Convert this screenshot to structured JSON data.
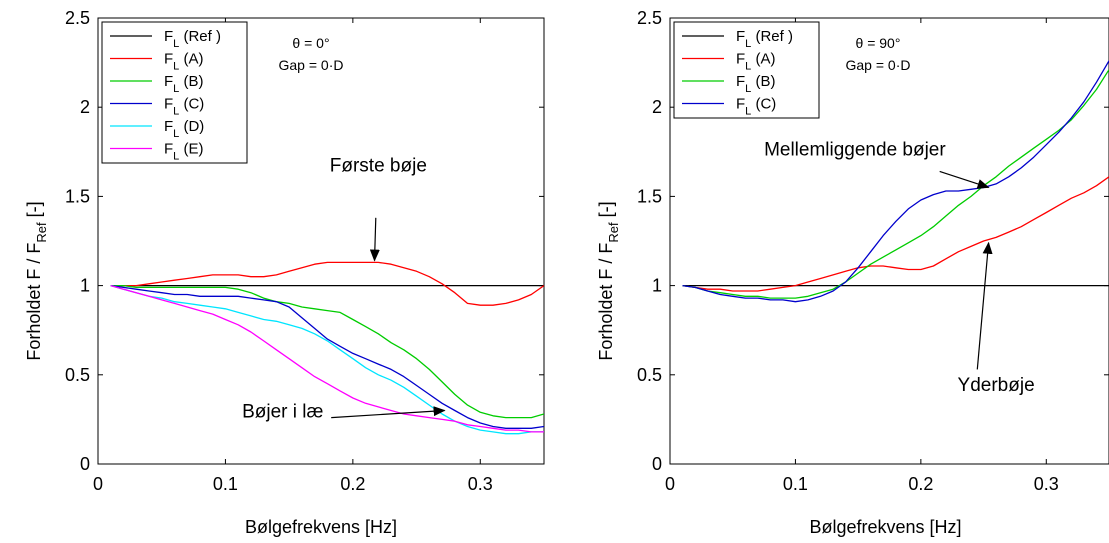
{
  "chart_data": [
    {
      "type": "line",
      "xlabel": "Bølgefrekvens [Hz]",
      "ylabel": "Forholdet F / F",
      "ylabel_sub": "Ref",
      "ylabel_unit": "[-]",
      "xlim": [
        0,
        0.35
      ],
      "ylim": [
        0,
        2.5
      ],
      "xticks": [
        0,
        0.1,
        0.2,
        0.3
      ],
      "xtick_labels": [
        "0",
        "0.1",
        "0.2",
        "0.3"
      ],
      "yticks": [
        0,
        0.5,
        1,
        1.5,
        2,
        2.5
      ],
      "ytick_labels": [
        "0",
        "0.5",
        "1",
        "1.5",
        "2",
        "2.5"
      ],
      "grid": false,
      "legend_position": "top-left",
      "info_lines": [
        "θ = 0°",
        "Gap = 0·D"
      ],
      "x": [
        0.01,
        0.02,
        0.03,
        0.04,
        0.05,
        0.06,
        0.07,
        0.08,
        0.09,
        0.1,
        0.11,
        0.12,
        0.13,
        0.14,
        0.15,
        0.16,
        0.17,
        0.18,
        0.19,
        0.2,
        0.21,
        0.22,
        0.23,
        0.24,
        0.25,
        0.26,
        0.27,
        0.28,
        0.29,
        0.3,
        0.31,
        0.32,
        0.33,
        0.34,
        0.35
      ],
      "series": [
        {
          "name": "F",
          "sub": "L",
          "suffix": " (Ref )",
          "color": "#000000",
          "values": [
            1,
            1,
            1,
            1,
            1,
            1,
            1,
            1,
            1,
            1,
            1,
            1,
            1,
            1,
            1,
            1,
            1,
            1,
            1,
            1,
            1,
            1,
            1,
            1,
            1,
            1,
            1,
            1,
            1,
            1,
            1,
            1,
            1,
            1,
            1
          ]
        },
        {
          "name": "F",
          "sub": "L",
          "suffix": " (A)",
          "color": "#ff0000",
          "values": [
            1.0,
            1.0,
            1.0,
            1.01,
            1.02,
            1.03,
            1.04,
            1.05,
            1.06,
            1.06,
            1.06,
            1.05,
            1.05,
            1.06,
            1.08,
            1.1,
            1.12,
            1.13,
            1.13,
            1.13,
            1.13,
            1.13,
            1.12,
            1.1,
            1.08,
            1.05,
            1.01,
            0.96,
            0.9,
            0.89,
            0.89,
            0.9,
            0.92,
            0.95,
            1.0
          ]
        },
        {
          "name": "F",
          "sub": "L",
          "suffix": " (B)",
          "color": "#00cc00",
          "values": [
            1.0,
            1.0,
            0.99,
            0.99,
            0.99,
            0.99,
            0.99,
            0.99,
            0.99,
            0.99,
            0.98,
            0.96,
            0.93,
            0.91,
            0.9,
            0.88,
            0.87,
            0.86,
            0.85,
            0.81,
            0.77,
            0.73,
            0.68,
            0.64,
            0.59,
            0.53,
            0.46,
            0.39,
            0.33,
            0.29,
            0.27,
            0.26,
            0.26,
            0.26,
            0.28
          ]
        },
        {
          "name": "F",
          "sub": "L",
          "suffix": " (C)",
          "color": "#0000cc",
          "values": [
            1.0,
            0.99,
            0.98,
            0.97,
            0.96,
            0.95,
            0.95,
            0.94,
            0.94,
            0.94,
            0.94,
            0.93,
            0.92,
            0.91,
            0.88,
            0.82,
            0.76,
            0.7,
            0.66,
            0.62,
            0.59,
            0.56,
            0.53,
            0.49,
            0.44,
            0.39,
            0.34,
            0.3,
            0.26,
            0.23,
            0.21,
            0.2,
            0.2,
            0.2,
            0.21
          ]
        },
        {
          "name": "F",
          "sub": "L",
          "suffix": " (D)",
          "color": "#00e5ff",
          "values": [
            1.0,
            0.98,
            0.96,
            0.94,
            0.93,
            0.91,
            0.9,
            0.89,
            0.88,
            0.87,
            0.85,
            0.83,
            0.81,
            0.8,
            0.78,
            0.76,
            0.73,
            0.69,
            0.64,
            0.59,
            0.54,
            0.5,
            0.47,
            0.43,
            0.38,
            0.33,
            0.28,
            0.24,
            0.21,
            0.19,
            0.18,
            0.17,
            0.17,
            0.18,
            0.18
          ]
        },
        {
          "name": "F",
          "sub": "L",
          "suffix": " (E)",
          "color": "#ff00ff",
          "values": [
            1.0,
            0.98,
            0.96,
            0.94,
            0.92,
            0.9,
            0.88,
            0.86,
            0.84,
            0.81,
            0.78,
            0.74,
            0.69,
            0.64,
            0.59,
            0.54,
            0.49,
            0.45,
            0.41,
            0.37,
            0.34,
            0.32,
            0.3,
            0.28,
            0.27,
            0.26,
            0.25,
            0.24,
            0.22,
            0.21,
            0.2,
            0.19,
            0.19,
            0.18,
            0.18
          ]
        }
      ],
      "annotations": [
        {
          "text": "Første bøje",
          "tx": 0.22,
          "ty": 1.64,
          "anchor": "middle",
          "ax": 0.218,
          "ay": 1.38,
          "hx": 0.217,
          "hy": 1.14
        },
        {
          "text": "Bøjer i læ",
          "tx": 0.145,
          "ty": 0.26,
          "anchor": "middle",
          "ax": 0.183,
          "ay": 0.26,
          "hx": 0.272,
          "hy": 0.3
        }
      ]
    },
    {
      "type": "line",
      "xlabel": "Bølgefrekvens [Hz]",
      "ylabel": "Forholdet F / F",
      "ylabel_sub": "Ref",
      "ylabel_unit": "[-]",
      "xlim": [
        0,
        0.35
      ],
      "ylim": [
        0,
        2.5
      ],
      "xticks": [
        0,
        0.1,
        0.2,
        0.3
      ],
      "xtick_labels": [
        "0",
        "0.1",
        "0.2",
        "0.3"
      ],
      "yticks": [
        0,
        0.5,
        1,
        1.5,
        2,
        2.5
      ],
      "ytick_labels": [
        "0",
        "0.5",
        "1",
        "1.5",
        "2",
        "2.5"
      ],
      "grid": false,
      "legend_position": "top-left",
      "info_lines": [
        "θ = 90°",
        "Gap = 0·D"
      ],
      "x": [
        0.01,
        0.02,
        0.03,
        0.04,
        0.05,
        0.06,
        0.07,
        0.08,
        0.09,
        0.1,
        0.11,
        0.12,
        0.13,
        0.14,
        0.15,
        0.16,
        0.17,
        0.18,
        0.19,
        0.2,
        0.21,
        0.22,
        0.23,
        0.24,
        0.25,
        0.26,
        0.27,
        0.28,
        0.29,
        0.3,
        0.31,
        0.32,
        0.33,
        0.34,
        0.35
      ],
      "series": [
        {
          "name": "F",
          "sub": "L",
          "suffix": " (Ref )",
          "color": "#000000",
          "values": [
            1,
            1,
            1,
            1,
            1,
            1,
            1,
            1,
            1,
            1,
            1,
            1,
            1,
            1,
            1,
            1,
            1,
            1,
            1,
            1,
            1,
            1,
            1,
            1,
            1,
            1,
            1,
            1,
            1,
            1,
            1,
            1,
            1,
            1,
            1
          ]
        },
        {
          "name": "F",
          "sub": "L",
          "suffix": " (A)",
          "color": "#ff0000",
          "values": [
            1.0,
            0.99,
            0.98,
            0.98,
            0.97,
            0.97,
            0.97,
            0.98,
            0.99,
            1.0,
            1.02,
            1.04,
            1.06,
            1.08,
            1.1,
            1.11,
            1.11,
            1.1,
            1.09,
            1.09,
            1.11,
            1.15,
            1.19,
            1.22,
            1.25,
            1.27,
            1.3,
            1.33,
            1.37,
            1.41,
            1.45,
            1.49,
            1.52,
            1.56,
            1.61
          ]
        },
        {
          "name": "F",
          "sub": "L",
          "suffix": " (B)",
          "color": "#00cc00",
          "values": [
            1.0,
            0.99,
            0.97,
            0.96,
            0.95,
            0.94,
            0.94,
            0.93,
            0.93,
            0.93,
            0.94,
            0.96,
            0.98,
            1.02,
            1.07,
            1.12,
            1.16,
            1.2,
            1.24,
            1.28,
            1.33,
            1.39,
            1.45,
            1.5,
            1.56,
            1.61,
            1.67,
            1.72,
            1.77,
            1.82,
            1.87,
            1.93,
            2.01,
            2.1,
            2.21
          ]
        },
        {
          "name": "F",
          "sub": "L",
          "suffix": " (C)",
          "color": "#0000cc",
          "values": [
            1.0,
            0.99,
            0.97,
            0.95,
            0.94,
            0.93,
            0.93,
            0.92,
            0.92,
            0.91,
            0.92,
            0.94,
            0.97,
            1.02,
            1.1,
            1.19,
            1.28,
            1.36,
            1.43,
            1.48,
            1.51,
            1.53,
            1.53,
            1.54,
            1.55,
            1.57,
            1.61,
            1.66,
            1.72,
            1.79,
            1.86,
            1.94,
            2.03,
            2.14,
            2.26
          ]
        }
      ],
      "annotations": [
        {
          "text": "Mellemliggende bøjer",
          "tx": 0.075,
          "ty": 1.73,
          "anchor": "start",
          "ax": 0.215,
          "ay": 1.64,
          "hx": 0.254,
          "hy": 1.55
        },
        {
          "text": "Yderbøje",
          "tx": 0.26,
          "ty": 0.41,
          "anchor": "middle",
          "ax": 0.245,
          "ay": 0.53,
          "hx": 0.254,
          "hy": 1.24
        }
      ]
    }
  ]
}
